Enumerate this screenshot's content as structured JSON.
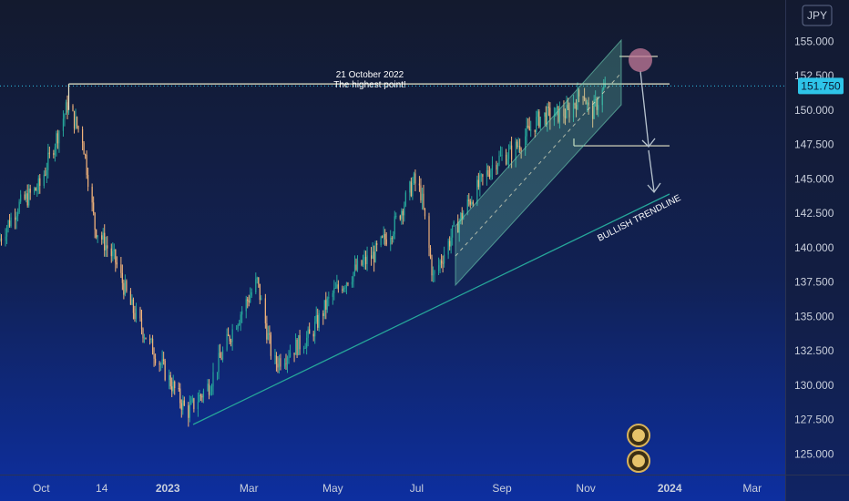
{
  "chart_data": {
    "type": "candlestick",
    "symbol_currency": "JPY",
    "current_price_label": "151.750",
    "ylim": [
      123.5,
      158.0
    ],
    "y_ticks": [
      "155.000",
      "152.500",
      "150.000",
      "147.500",
      "145.000",
      "142.500",
      "140.000",
      "137.500",
      "135.000",
      "132.500",
      "130.000",
      "127.500",
      "125.000"
    ],
    "y_tick_values": [
      155,
      152.5,
      150,
      147.5,
      145,
      142.5,
      140,
      137.5,
      135,
      132.5,
      130,
      127.5,
      125
    ],
    "x_ticks": [
      "Oct",
      "14",
      "2023",
      "Mar",
      "May",
      "Jul",
      "Sep",
      "Nov",
      "2024",
      "Mar"
    ],
    "x_tick_dates": [
      "2022-10-01",
      "2022-11-14",
      "2023-01-01",
      "2023-03-01",
      "2023-05-01",
      "2023-07-01",
      "2023-09-01",
      "2023-11-01",
      "2024-01-01",
      "2024-03-01"
    ],
    "xlim": [
      "2022-09-01",
      "2024-03-25"
    ],
    "price_anchors": [
      [
        "2022-09-01",
        140.5
      ],
      [
        "2022-09-15",
        143.0
      ],
      [
        "2022-10-01",
        144.5
      ],
      [
        "2022-10-21",
        150.3
      ],
      [
        "2022-11-01",
        148.0
      ],
      [
        "2022-11-10",
        141.5
      ],
      [
        "2022-11-25",
        139.0
      ],
      [
        "2022-12-05",
        136.0
      ],
      [
        "2022-12-20",
        133.0
      ],
      [
        "2023-01-16",
        128.0
      ],
      [
        "2023-02-01",
        130.0
      ],
      [
        "2023-02-20",
        134.5
      ],
      [
        "2023-03-08",
        137.5
      ],
      [
        "2023-03-20",
        131.5
      ],
      [
        "2023-04-01",
        132.5
      ],
      [
        "2023-04-15",
        133.5
      ],
      [
        "2023-05-01",
        136.5
      ],
      [
        "2023-05-20",
        138.5
      ],
      [
        "2023-06-01",
        139.5
      ],
      [
        "2023-06-15",
        141.5
      ],
      [
        "2023-06-30",
        144.8
      ],
      [
        "2023-07-05",
        144.0
      ],
      [
        "2023-07-14",
        137.8
      ],
      [
        "2023-07-28",
        141.0
      ],
      [
        "2023-08-10",
        143.5
      ],
      [
        "2023-08-28",
        146.3
      ],
      [
        "2023-09-10",
        147.0
      ],
      [
        "2023-09-30",
        149.5
      ],
      [
        "2023-10-20",
        149.8
      ],
      [
        "2023-10-31",
        151.5
      ],
      [
        "2023-11-05",
        149.5
      ],
      [
        "2023-11-15",
        151.5
      ]
    ],
    "annotations": {
      "high_note_line1": "21 October 2022",
      "high_note_line2": "The highest point!",
      "trendline_label": "BULLISH TRENDLINE",
      "high_level": 151.9,
      "target_level": 147.4,
      "channel_top_level": 153.9
    },
    "colors": {
      "up": "#26a69a",
      "down": "#f0b27a",
      "trendline": "#26a69a",
      "channel_fill": "#6fd3b5",
      "price_label_bg": "#2ec4e8"
    }
  },
  "icons": [
    "coin-icon",
    "coin-stack-icon"
  ]
}
